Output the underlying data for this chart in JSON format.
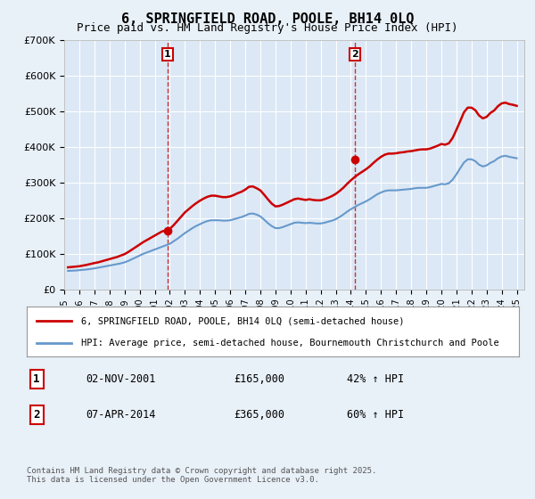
{
  "title": "6, SPRINGFIELD ROAD, POOLE, BH14 0LQ",
  "subtitle": "Price paid vs. HM Land Registry's House Price Index (HPI)",
  "background_color": "#e8f0f8",
  "plot_background": "#dce8f5",
  "grid_color": "#ffffff",
  "line1_color": "#cc0000",
  "line2_color": "#6699cc",
  "vline_color": "#cc0000",
  "sale1_date_x": 2001.84,
  "sale2_date_x": 2014.27,
  "ylim": [
    0,
    700000
  ],
  "yticks": [
    0,
    100000,
    200000,
    300000,
    400000,
    500000,
    600000,
    700000
  ],
  "ytick_labels": [
    "£0",
    "£100K",
    "£200K",
    "£300K",
    "£400K",
    "£500K",
    "£600K",
    "£700K"
  ],
  "xlim_start": 1995.0,
  "xlim_end": 2025.5,
  "legend1_label": "6, SPRINGFIELD ROAD, POOLE, BH14 0LQ (semi-detached house)",
  "legend2_label": "HPI: Average price, semi-detached house, Bournemouth Christchurch and Poole",
  "annotation1_box": "1",
  "annotation1_date": "02-NOV-2001",
  "annotation1_price": "£165,000",
  "annotation1_hpi": "42% ↑ HPI",
  "annotation2_box": "2",
  "annotation2_date": "07-APR-2014",
  "annotation2_price": "£365,000",
  "annotation2_hpi": "60% ↑ HPI",
  "footer": "Contains HM Land Registry data © Crown copyright and database right 2025.\nThis data is licensed under the Open Government Licence v3.0.",
  "hpi_data": {
    "years": [
      1995.25,
      1995.5,
      1995.75,
      1996.0,
      1996.25,
      1996.5,
      1996.75,
      1997.0,
      1997.25,
      1997.5,
      1997.75,
      1998.0,
      1998.25,
      1998.5,
      1998.75,
      1999.0,
      1999.25,
      1999.5,
      1999.75,
      2000.0,
      2000.25,
      2000.5,
      2000.75,
      2001.0,
      2001.25,
      2001.5,
      2001.75,
      2002.0,
      2002.25,
      2002.5,
      2002.75,
      2003.0,
      2003.25,
      2003.5,
      2003.75,
      2004.0,
      2004.25,
      2004.5,
      2004.75,
      2005.0,
      2005.25,
      2005.5,
      2005.75,
      2006.0,
      2006.25,
      2006.5,
      2006.75,
      2007.0,
      2007.25,
      2007.5,
      2007.75,
      2008.0,
      2008.25,
      2008.5,
      2008.75,
      2009.0,
      2009.25,
      2009.5,
      2009.75,
      2010.0,
      2010.25,
      2010.5,
      2010.75,
      2011.0,
      2011.25,
      2011.5,
      2011.75,
      2012.0,
      2012.25,
      2012.5,
      2012.75,
      2013.0,
      2013.25,
      2013.5,
      2013.75,
      2014.0,
      2014.25,
      2014.5,
      2014.75,
      2015.0,
      2015.25,
      2015.5,
      2015.75,
      2016.0,
      2016.25,
      2016.5,
      2016.75,
      2017.0,
      2017.25,
      2017.5,
      2017.75,
      2018.0,
      2018.25,
      2018.5,
      2018.75,
      2019.0,
      2019.25,
      2019.5,
      2019.75,
      2020.0,
      2020.25,
      2020.5,
      2020.75,
      2021.0,
      2021.25,
      2021.5,
      2021.75,
      2022.0,
      2022.25,
      2022.5,
      2022.75,
      2023.0,
      2023.25,
      2023.5,
      2023.75,
      2024.0,
      2024.25,
      2024.5,
      2024.75,
      2025.0
    ],
    "values": [
      52000,
      52500,
      53000,
      54000,
      55000,
      56000,
      57500,
      59000,
      61000,
      63000,
      65000,
      67000,
      69000,
      71000,
      73000,
      76000,
      80000,
      85000,
      90000,
      95000,
      100000,
      104000,
      108000,
      112000,
      116000,
      120000,
      124000,
      128000,
      135000,
      142000,
      150000,
      158000,
      165000,
      172000,
      178000,
      183000,
      188000,
      192000,
      194000,
      194000,
      194000,
      193000,
      193000,
      194000,
      197000,
      200000,
      203000,
      207000,
      212000,
      213000,
      210000,
      205000,
      196000,
      186000,
      178000,
      172000,
      172000,
      175000,
      179000,
      183000,
      187000,
      188000,
      187000,
      186000,
      187000,
      186000,
      185000,
      185000,
      187000,
      190000,
      193000,
      197000,
      203000,
      210000,
      218000,
      225000,
      231000,
      237000,
      242000,
      247000,
      253000,
      260000,
      267000,
      272000,
      276000,
      278000,
      278000,
      278000,
      279000,
      280000,
      281000,
      282000,
      284000,
      285000,
      285000,
      285000,
      287000,
      290000,
      293000,
      296000,
      295000,
      298000,
      308000,
      323000,
      340000,
      356000,
      365000,
      365000,
      360000,
      350000,
      345000,
      348000,
      355000,
      360000,
      368000,
      373000,
      375000,
      372000,
      370000,
      368000
    ]
  },
  "property_data": {
    "years": [
      1995.25,
      1995.5,
      1995.75,
      1996.0,
      1996.25,
      1996.5,
      1996.75,
      1997.0,
      1997.25,
      1997.5,
      1997.75,
      1998.0,
      1998.25,
      1998.5,
      1998.75,
      1999.0,
      1999.25,
      1999.5,
      1999.75,
      2000.0,
      2000.25,
      2000.5,
      2000.75,
      2001.0,
      2001.25,
      2001.5,
      2001.75,
      2002.0,
      2002.25,
      2002.5,
      2002.75,
      2003.0,
      2003.25,
      2003.5,
      2003.75,
      2004.0,
      2004.25,
      2004.5,
      2004.75,
      2005.0,
      2005.25,
      2005.5,
      2005.75,
      2006.0,
      2006.25,
      2006.5,
      2006.75,
      2007.0,
      2007.25,
      2007.5,
      2007.75,
      2008.0,
      2008.25,
      2008.5,
      2008.75,
      2009.0,
      2009.25,
      2009.5,
      2009.75,
      2010.0,
      2010.25,
      2010.5,
      2010.75,
      2011.0,
      2011.25,
      2011.5,
      2011.75,
      2012.0,
      2012.25,
      2012.5,
      2012.75,
      2013.0,
      2013.25,
      2013.5,
      2013.75,
      2014.0,
      2014.25,
      2014.5,
      2014.75,
      2015.0,
      2015.25,
      2015.5,
      2015.75,
      2016.0,
      2016.25,
      2016.5,
      2016.75,
      2017.0,
      2017.25,
      2017.5,
      2017.75,
      2018.0,
      2018.25,
      2018.5,
      2018.75,
      2019.0,
      2019.25,
      2019.5,
      2019.75,
      2020.0,
      2020.25,
      2020.5,
      2020.75,
      2021.0,
      2021.25,
      2021.5,
      2021.75,
      2022.0,
      2022.25,
      2022.5,
      2022.75,
      2023.0,
      2023.25,
      2023.5,
      2023.75,
      2024.0,
      2024.25,
      2024.5,
      2024.75,
      2025.0
    ],
    "values": [
      62000,
      63000,
      64000,
      65000,
      67000,
      69000,
      71500,
      74000,
      76000,
      79000,
      82000,
      85000,
      88000,
      91000,
      95000,
      99000,
      105000,
      112000,
      119000,
      126000,
      133000,
      139000,
      145000,
      151000,
      157000,
      163000,
      165000,
      170000,
      180000,
      192000,
      204000,
      216000,
      225000,
      234000,
      242000,
      249000,
      255000,
      260000,
      263000,
      263000,
      261000,
      259000,
      259000,
      261000,
      265000,
      270000,
      274000,
      280000,
      288000,
      289000,
      284000,
      278000,
      266000,
      253000,
      241000,
      233000,
      234000,
      238000,
      243000,
      248000,
      253000,
      255000,
      253000,
      251000,
      253000,
      251000,
      250000,
      250000,
      253000,
      257000,
      262000,
      268000,
      276000,
      285000,
      296000,
      306000,
      315000,
      323000,
      330000,
      337000,
      345000,
      355000,
      364000,
      372000,
      378000,
      381000,
      381000,
      382000,
      384000,
      385000,
      387000,
      388000,
      390000,
      392000,
      393000,
      393000,
      395000,
      399000,
      403000,
      408000,
      406000,
      410000,
      425000,
      448000,
      472000,
      497000,
      510000,
      510000,
      503000,
      488000,
      480000,
      484000,
      495000,
      502000,
      514000,
      522000,
      524000,
      520000,
      518000,
      515000
    ]
  }
}
